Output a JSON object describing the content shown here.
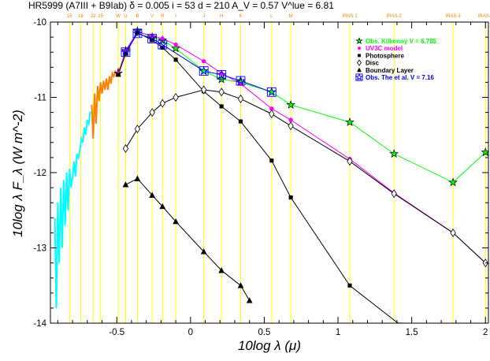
{
  "chart_data": {
    "type": "line",
    "title": "HR5999 (A7III + B9Iab) δ = 0.005 i = 53 d = 210 A_V = 0.57 V^lue = 6.81",
    "xlabel": "10log λ (μ)",
    "ylabel": "10log λ F_λ (W m^-2)",
    "xlim": [
      -0.95,
      2.02
    ],
    "ylim": [
      -14,
      -10
    ],
    "x_ticks": [
      "-0.5",
      "0",
      "0.5",
      "1",
      "1.5",
      "2"
    ],
    "y_ticks": [
      "-10",
      "-11",
      "-12",
      "-13",
      "-14"
    ],
    "bands": [
      {
        "label": "15",
        "x": -0.82
      },
      {
        "label": "18",
        "x": -0.745
      },
      {
        "label": "22",
        "x": -0.66
      },
      {
        "label": "25",
        "x": -0.61
      },
      {
        "label": "W",
        "x": -0.49
      },
      {
        "label": "U",
        "x": -0.44
      },
      {
        "label": "B",
        "x": -0.36
      },
      {
        "label": "V",
        "x": -0.26
      },
      {
        "label": "R",
        "x": -0.19
      },
      {
        "label": "I",
        "x": -0.1
      },
      {
        "label": "J",
        "x": 0.09
      },
      {
        "label": "H",
        "x": 0.21
      },
      {
        "label": "K",
        "x": 0.34
      },
      {
        "label": "L",
        "x": 0.55
      },
      {
        "label": "M",
        "x": 0.68
      },
      {
        "label": "IRAS-1",
        "x": 1.08
      },
      {
        "label": "IRAS-2",
        "x": 1.38
      },
      {
        "label": "IRAS-3",
        "x": 1.78
      },
      {
        "label": "IRAS-4",
        "x": 2.0
      }
    ],
    "iue_spectrum": {
      "colors": {
        "short": "#00ffff",
        "long": "#ff8000"
      },
      "short": {
        "x": [
          -0.92,
          -0.91,
          -0.9,
          -0.89,
          -0.88,
          -0.87,
          -0.86,
          -0.85,
          -0.84,
          -0.83,
          -0.82,
          -0.81,
          -0.8,
          -0.79,
          -0.78,
          -0.77,
          -0.76,
          -0.75,
          -0.74,
          -0.73,
          -0.72,
          -0.71,
          -0.7,
          -0.69,
          -0.68,
          -0.67
        ],
        "y": [
          -12.6,
          -13.8,
          -12.4,
          -13.2,
          -12.2,
          -13.0,
          -12.1,
          -12.7,
          -12.0,
          -12.5,
          -11.95,
          -12.2,
          -12.05,
          -11.85,
          -12.05,
          -11.75,
          -11.8,
          -11.7,
          -11.55,
          -11.6,
          -11.4,
          -11.5,
          -11.3,
          -11.35,
          -11.2,
          -11.2
        ]
      },
      "long": {
        "x": [
          -0.67,
          -0.66,
          -0.65,
          -0.64,
          -0.63,
          -0.62,
          -0.61,
          -0.6,
          -0.59,
          -0.58,
          -0.57,
          -0.56,
          -0.55,
          -0.54,
          -0.53,
          -0.52,
          -0.51,
          -0.5,
          -0.49,
          -0.48
        ],
        "y": [
          -11.1,
          -11.55,
          -10.95,
          -11.35,
          -10.85,
          -11.05,
          -10.8,
          -10.95,
          -10.78,
          -10.9,
          -10.75,
          -10.9,
          -10.72,
          -10.82,
          -10.68,
          -10.72,
          -10.66,
          -10.7,
          -10.62,
          -10.64
        ]
      }
    },
    "series": [
      {
        "name": "Obs. Kilkenny V = 6.785",
        "color": "#00ff00",
        "marker": "star",
        "x": [
          -0.49,
          -0.44,
          -0.36,
          -0.26,
          -0.19,
          -0.1,
          0.09,
          0.21,
          0.34,
          0.55,
          0.68,
          1.08,
          1.38,
          1.78,
          2.0
        ],
        "y": [
          -10.68,
          -10.38,
          -10.12,
          -10.2,
          -10.24,
          -10.35,
          -10.65,
          -10.76,
          -10.8,
          -10.93,
          -11.1,
          -11.33,
          -11.75,
          -12.13,
          -11.73
        ]
      },
      {
        "name": "UV3C model",
        "color": "#ff00ff",
        "marker": "circle",
        "x": [
          -0.49,
          -0.44,
          -0.36,
          -0.26,
          -0.19,
          -0.1,
          0.09,
          0.21,
          0.34,
          0.55,
          0.68,
          1.08,
          1.38,
          1.78,
          2.0
        ],
        "y": [
          -10.68,
          -10.38,
          -10.13,
          -10.18,
          -10.22,
          -10.3,
          -10.52,
          -10.68,
          -10.82,
          -11.15,
          -11.3,
          -11.82,
          -12.27,
          -12.8,
          -13.2
        ]
      },
      {
        "name": "Photosphere",
        "color": "#000000",
        "marker": "square",
        "x": [
          -0.49,
          -0.44,
          -0.36,
          -0.26,
          -0.19,
          -0.1,
          0.09,
          0.21,
          0.34,
          0.55,
          0.68,
          1.08,
          1.42
        ],
        "y": [
          -10.7,
          -10.42,
          -10.14,
          -10.24,
          -10.34,
          -10.5,
          -10.92,
          -11.12,
          -11.32,
          -11.84,
          -12.33,
          -13.5,
          -14.02
        ]
      },
      {
        "name": "Disc",
        "color": "#000000",
        "marker": "diamond",
        "x": [
          -0.44,
          -0.36,
          -0.26,
          -0.19,
          -0.1,
          0.09,
          0.21,
          0.34,
          0.55,
          0.68,
          1.08,
          1.38,
          1.78,
          2.0
        ],
        "y": [
          -11.68,
          -11.42,
          -11.2,
          -11.08,
          -11.0,
          -10.9,
          -10.93,
          -11.02,
          -11.22,
          -11.38,
          -11.85,
          -12.28,
          -12.8,
          -13.2
        ]
      },
      {
        "name": "Boundary Layer",
        "color": "#000000",
        "marker": "triangle",
        "x": [
          -0.44,
          -0.36,
          -0.26,
          -0.19,
          -0.1,
          0.09,
          0.21,
          0.34,
          0.4
        ],
        "y": [
          -12.16,
          -12.08,
          -12.3,
          -12.45,
          -12.65,
          -13.05,
          -13.3,
          -13.5,
          -13.7
        ]
      },
      {
        "name": "Obs. The et al. V = 7.16",
        "color": "#0000ff",
        "marker": "box-star",
        "x": [
          -0.44,
          -0.36,
          -0.26,
          -0.19,
          0.09,
          0.21,
          0.34,
          0.55
        ],
        "y": [
          -10.4,
          -10.15,
          -10.22,
          -10.3,
          -10.65,
          -10.7,
          -10.78,
          -10.93
        ]
      }
    ],
    "legend": {
      "placement": "top-right"
    }
  }
}
